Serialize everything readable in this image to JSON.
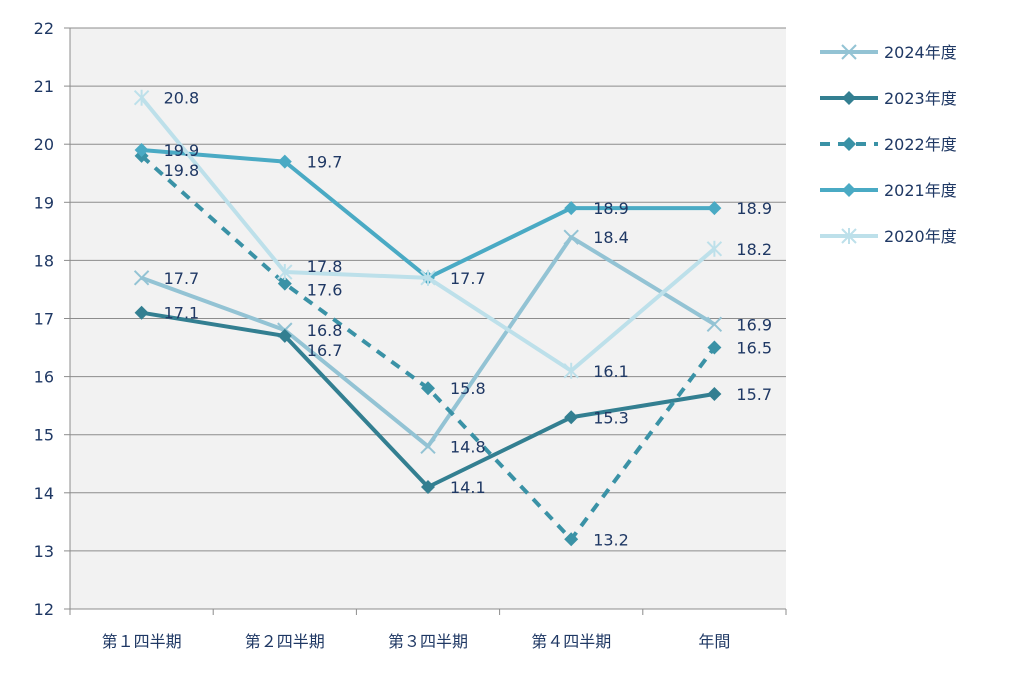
{
  "chart_data": {
    "type": "line",
    "categories": [
      "第１四半期",
      "第２四半期",
      "第３四半期",
      "第４四半期",
      "年間"
    ],
    "ylim": [
      12,
      22
    ],
    "yticks": [
      12,
      13,
      14,
      15,
      16,
      17,
      18,
      19,
      20,
      21,
      22
    ],
    "grid": true,
    "legend_position": "right",
    "series": [
      {
        "name": "2024年度",
        "values": [
          17.7,
          16.8,
          14.8,
          18.4,
          16.9
        ],
        "color": "#93c3d4",
        "marker": "x",
        "dashed": false
      },
      {
        "name": "2023年度",
        "values": [
          17.1,
          16.7,
          14.1,
          15.3,
          15.7
        ],
        "color": "#337f91",
        "marker": "diamond",
        "dashed": false
      },
      {
        "name": "2022年度",
        "values": [
          19.8,
          17.6,
          15.8,
          13.2,
          16.5
        ],
        "color": "#3a92a6",
        "marker": "diamond",
        "dashed": true
      },
      {
        "name": "2021年度",
        "values": [
          19.9,
          19.7,
          17.7,
          18.9,
          18.9
        ],
        "color": "#4aaac4",
        "marker": "diamond",
        "dashed": false
      },
      {
        "name": "2020年度",
        "values": [
          20.8,
          17.8,
          17.7,
          16.1,
          18.2
        ],
        "color": "#bde0ea",
        "marker": "asterisk",
        "dashed": false
      }
    ],
    "data_labels": [
      {
        "text": "20.8"
      },
      {
        "text": "19.9"
      },
      {
        "text": "19.8"
      },
      {
        "text": "17.7"
      },
      {
        "text": "17.1"
      },
      {
        "text": "19.7"
      },
      {
        "text": "17.8"
      },
      {
        "text": "17.6"
      },
      {
        "text": "16.8"
      },
      {
        "text": "16.7"
      },
      {
        "text": "17.7"
      },
      {
        "text": "15.8"
      },
      {
        "text": "14.8"
      },
      {
        "text": "14.1"
      },
      {
        "text": "18.9"
      },
      {
        "text": "18.4"
      },
      {
        "text": "16.1"
      },
      {
        "text": "15.3"
      },
      {
        "text": "13.2"
      },
      {
        "text": "18.9"
      },
      {
        "text": "18.2"
      },
      {
        "text": "16.9"
      },
      {
        "text": "16.5"
      },
      {
        "text": "15.7"
      }
    ]
  }
}
